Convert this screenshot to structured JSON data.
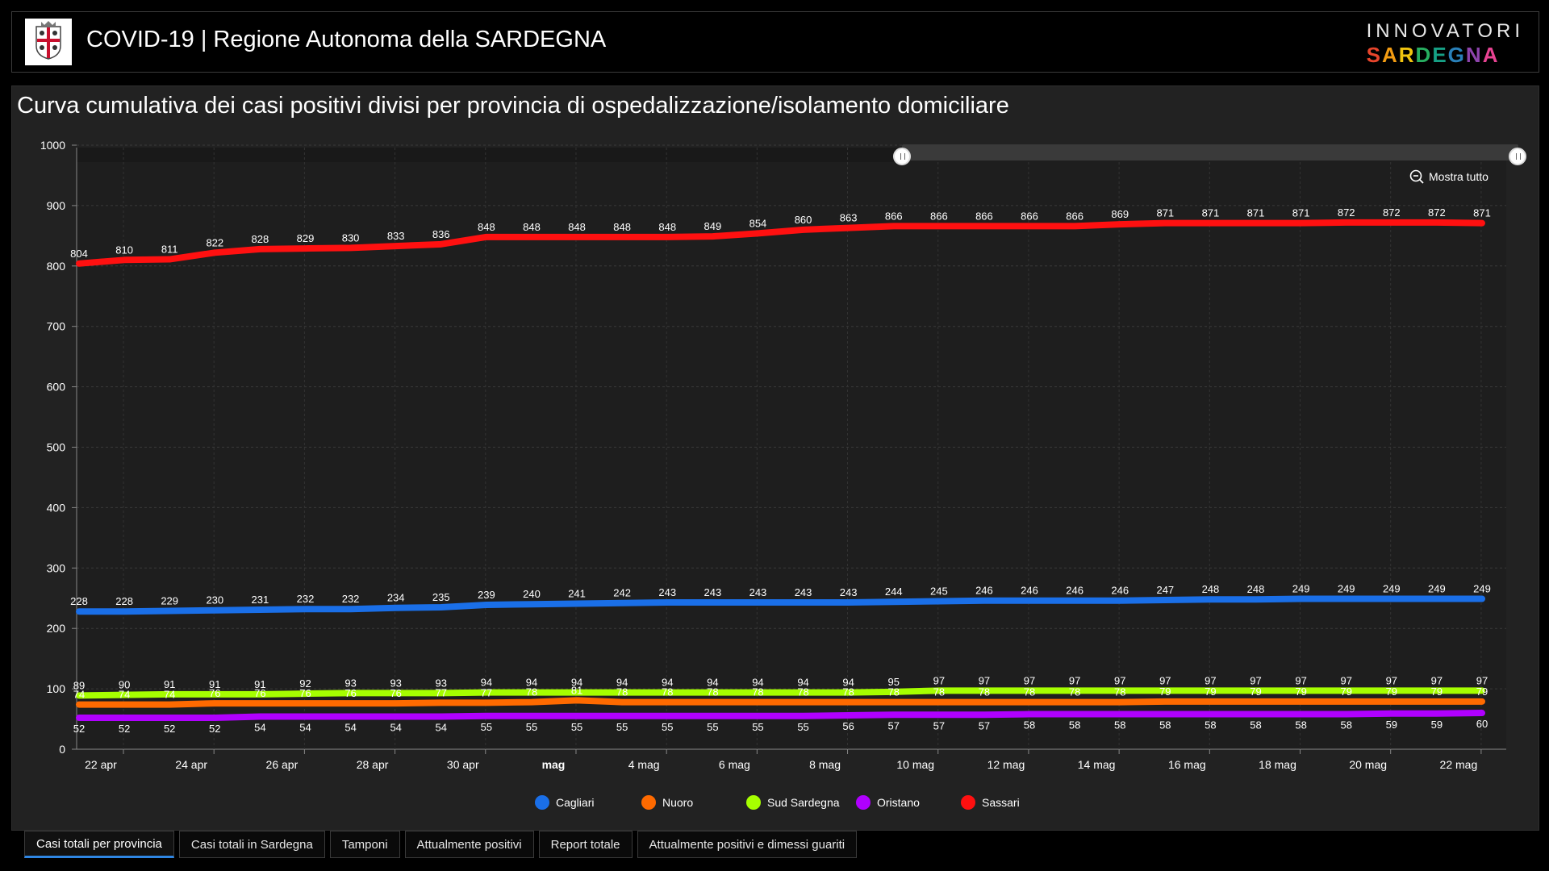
{
  "header": {
    "title": "COVID-19 | Regione Autonoma della SARDEGNA",
    "brand_top": "INNOVATORI",
    "brand_bottom": "SARDEGNA"
  },
  "panel": {
    "title": "Curva cumulativa dei casi positivi divisi per provincia di ospedalizzazione/isolamento domiciliare",
    "zoom_label": "Mostra tutto"
  },
  "chart_data": {
    "type": "line",
    "x": [
      "22 apr",
      "23 apr",
      "24 apr",
      "25 apr",
      "26 apr",
      "27 apr",
      "28 apr",
      "29 apr",
      "30 apr",
      "1 mag",
      "2 mag",
      "3 mag",
      "4 mag",
      "5 mag",
      "6 mag",
      "7 mag",
      "8 mag",
      "9 mag",
      "10 mag",
      "11 mag",
      "12 mag",
      "13 mag",
      "14 mag",
      "15 mag",
      "16 mag",
      "17 mag",
      "18 mag",
      "19 mag",
      "20 mag",
      "21 mag",
      "22 mag",
      "23 mag"
    ],
    "xtick_labels": [
      "22 apr",
      "24 apr",
      "26 apr",
      "28 apr",
      "30 apr",
      "mag",
      "4 mag",
      "6 mag",
      "8 mag",
      "10 mag",
      "12 mag",
      "14 mag",
      "16 mag",
      "18 mag",
      "20 mag",
      "22 mag"
    ],
    "ylim": [
      0,
      1000
    ],
    "yticks": [
      0,
      100,
      200,
      300,
      400,
      500,
      600,
      700,
      800,
      900,
      1000
    ],
    "grid": true,
    "legend_position": "bottom",
    "series": [
      {
        "name": "Cagliari",
        "color": "#1a6fe8",
        "values": [
          228,
          228,
          229,
          230,
          231,
          232,
          232,
          234,
          235,
          239,
          240,
          241,
          242,
          243,
          243,
          243,
          243,
          243,
          244,
          245,
          246,
          246,
          246,
          246,
          247,
          248,
          248,
          249,
          249,
          249,
          249,
          249
        ]
      },
      {
        "name": "Nuoro",
        "color": "#ff6a00",
        "values": [
          74,
          74,
          74,
          76,
          76,
          76,
          76,
          76,
          77,
          77,
          78,
          81,
          78,
          78,
          78,
          78,
          78,
          78,
          78,
          78,
          78,
          78,
          78,
          78,
          79,
          79,
          79,
          79,
          79,
          79,
          79,
          79
        ]
      },
      {
        "name": "Sud Sardegna",
        "color": "#a6ff00",
        "values": [
          89,
          90,
          91,
          91,
          91,
          92,
          93,
          93,
          93,
          94,
          94,
          94,
          94,
          94,
          94,
          94,
          94,
          94,
          95,
          97,
          97,
          97,
          97,
          97,
          97,
          97,
          97,
          97,
          97,
          97,
          97,
          97
        ]
      },
      {
        "name": "Oristano",
        "color": "#b000ff",
        "values": [
          52,
          52,
          52,
          52,
          54,
          54,
          54,
          54,
          54,
          55,
          55,
          55,
          55,
          55,
          55,
          55,
          55,
          56,
          57,
          57,
          57,
          58,
          58,
          58,
          58,
          58,
          58,
          58,
          58,
          59,
          59,
          60
        ]
      },
      {
        "name": "Sassari",
        "color": "#ff1010",
        "values": [
          804,
          810,
          811,
          822,
          828,
          829,
          830,
          833,
          836,
          848,
          848,
          848,
          848,
          848,
          849,
          854,
          860,
          863,
          866,
          866,
          866,
          866,
          866,
          869,
          871,
          871,
          871,
          871,
          872,
          872,
          872,
          871
        ]
      }
    ]
  },
  "tabs": [
    {
      "label": "Casi totali per provincia",
      "active": true
    },
    {
      "label": "Casi totali in Sardegna"
    },
    {
      "label": "Tamponi"
    },
    {
      "label": "Attualmente positivi"
    },
    {
      "label": "Report totale"
    },
    {
      "label": "Attualmente positivi e dimessi guariti"
    }
  ]
}
